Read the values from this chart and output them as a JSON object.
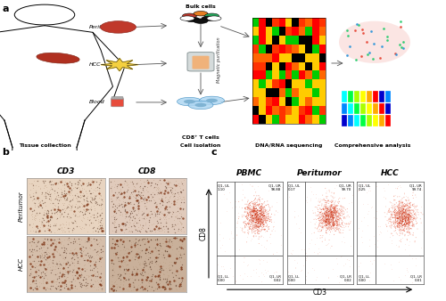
{
  "panel_a_label": "a",
  "panel_b_label": "b",
  "panel_c_label": "c",
  "fig_bg": "#ffffff",
  "tissue_collection_label": "Tissue collection",
  "cell_isolation_label": "Cell isolation",
  "dna_rna_label": "DNA/RNA sequencing",
  "comprehensive_label": "Comprehensive analysis",
  "peritumor_label": "Peritumor",
  "hcc_label": "HCC",
  "blood_label": "Blood",
  "bulk_cells_label": "Bulk cells",
  "cd8_tcells_label": "CD8⁺ T cells",
  "mag_purif_label": "Magnetic purification",
  "cd3_label": "CD3",
  "cd8_label": "CD8",
  "pbmc_label": "PBMC",
  "peritumor_c_label": "Peritumor",
  "hcc_c_label": "HCC",
  "cd3_axis_label": "CD3",
  "cd8_axis_label": "CD8",
  "flow_quadrant_labels": {
    "PBMC": {
      "UL": "Q1, UL\n1.10",
      "UR": "Q1, UR\n98.88",
      "LL": "Q1, LL\n0.00",
      "LR": "Q1, LR\n0.02"
    },
    "Peritumor": {
      "UL": "Q1, UL\n0.17",
      "UR": "Q1, UR\n99.70",
      "LL": "Q1, LL\n0.00",
      "LR": "Q1, LR\n0.02"
    },
    "HCC": {
      "UL": "Q1, UL\n0.25",
      "UR": "Q1, UR\n99.74",
      "LL": "Q1, LL\n0.00",
      "LR": "Q1, LR\n0.01"
    }
  },
  "ihc_bg_colors": [
    "#e8d4c0",
    "#e0cabb",
    "#d5beaa",
    "#c9b09a"
  ],
  "ihc_dot_color": "#7a3010",
  "ihc_nucleus_color": "#3d1a08"
}
